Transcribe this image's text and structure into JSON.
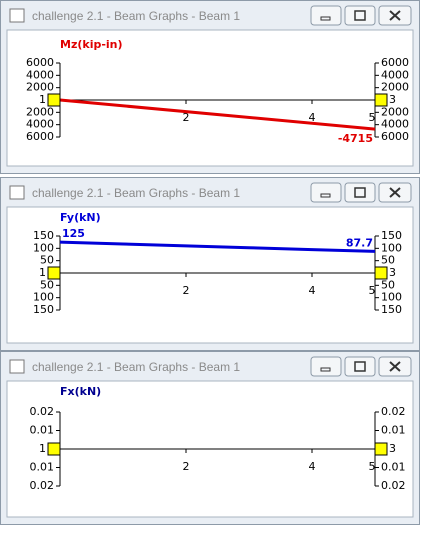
{
  "windows": [
    {
      "title": "challenge 2.1 - Beam Graphs - Beam 1",
      "chart_data": {
        "type": "line",
        "y_label": "Mz(kip-in)",
        "color": "#e00000",
        "x": [
          0,
          5
        ],
        "values": [
          0,
          -4715
        ],
        "xlim": [
          0,
          5
        ],
        "xticks": [
          2,
          4,
          5
        ],
        "ylim": [
          -6000,
          6000
        ],
        "yticks": [
          6000,
          4000,
          2000,
          {
            "value": -2000,
            "label": "2000"
          },
          {
            "value": -4000,
            "label": "4000"
          },
          {
            "value": -6000,
            "label": "6000"
          }
        ],
        "nodes": [
          "1",
          "3"
        ]
      }
    },
    {
      "title": "challenge 2.1 - Beam Graphs - Beam 1",
      "chart_data": {
        "type": "line",
        "y_label": "Fy(kN)",
        "color": "#0000d8",
        "x": [
          0,
          1,
          2,
          3,
          4,
          5
        ],
        "values": [
          125,
          117.5,
          110,
          102.5,
          95,
          87.7
        ],
        "xlim": [
          0,
          5
        ],
        "xticks": [
          2,
          4,
          5
        ],
        "ylim": [
          -150,
          150
        ],
        "yticks": [
          150,
          100,
          50,
          {
            "value": -50,
            "label": "50"
          },
          {
            "value": -100,
            "label": "100"
          },
          {
            "value": -150,
            "label": "150"
          }
        ],
        "nodes": [
          "1",
          "3"
        ]
      }
    },
    {
      "title": "challenge 2.1 - Beam Graphs - Beam 1",
      "chart_data": {
        "type": "line",
        "y_label": "Fx(kN)",
        "color": "#000090",
        "xlim": [
          0,
          5
        ],
        "xticks": [
          2,
          4,
          5
        ],
        "ylim": [
          -0.02,
          0.02
        ],
        "yticks": [
          0.02,
          0.01,
          {
            "value": -0.01,
            "label": "0.01"
          },
          {
            "value": -0.02,
            "label": "0.02"
          }
        ],
        "nodes": [
          "1",
          "3"
        ]
      }
    }
  ]
}
